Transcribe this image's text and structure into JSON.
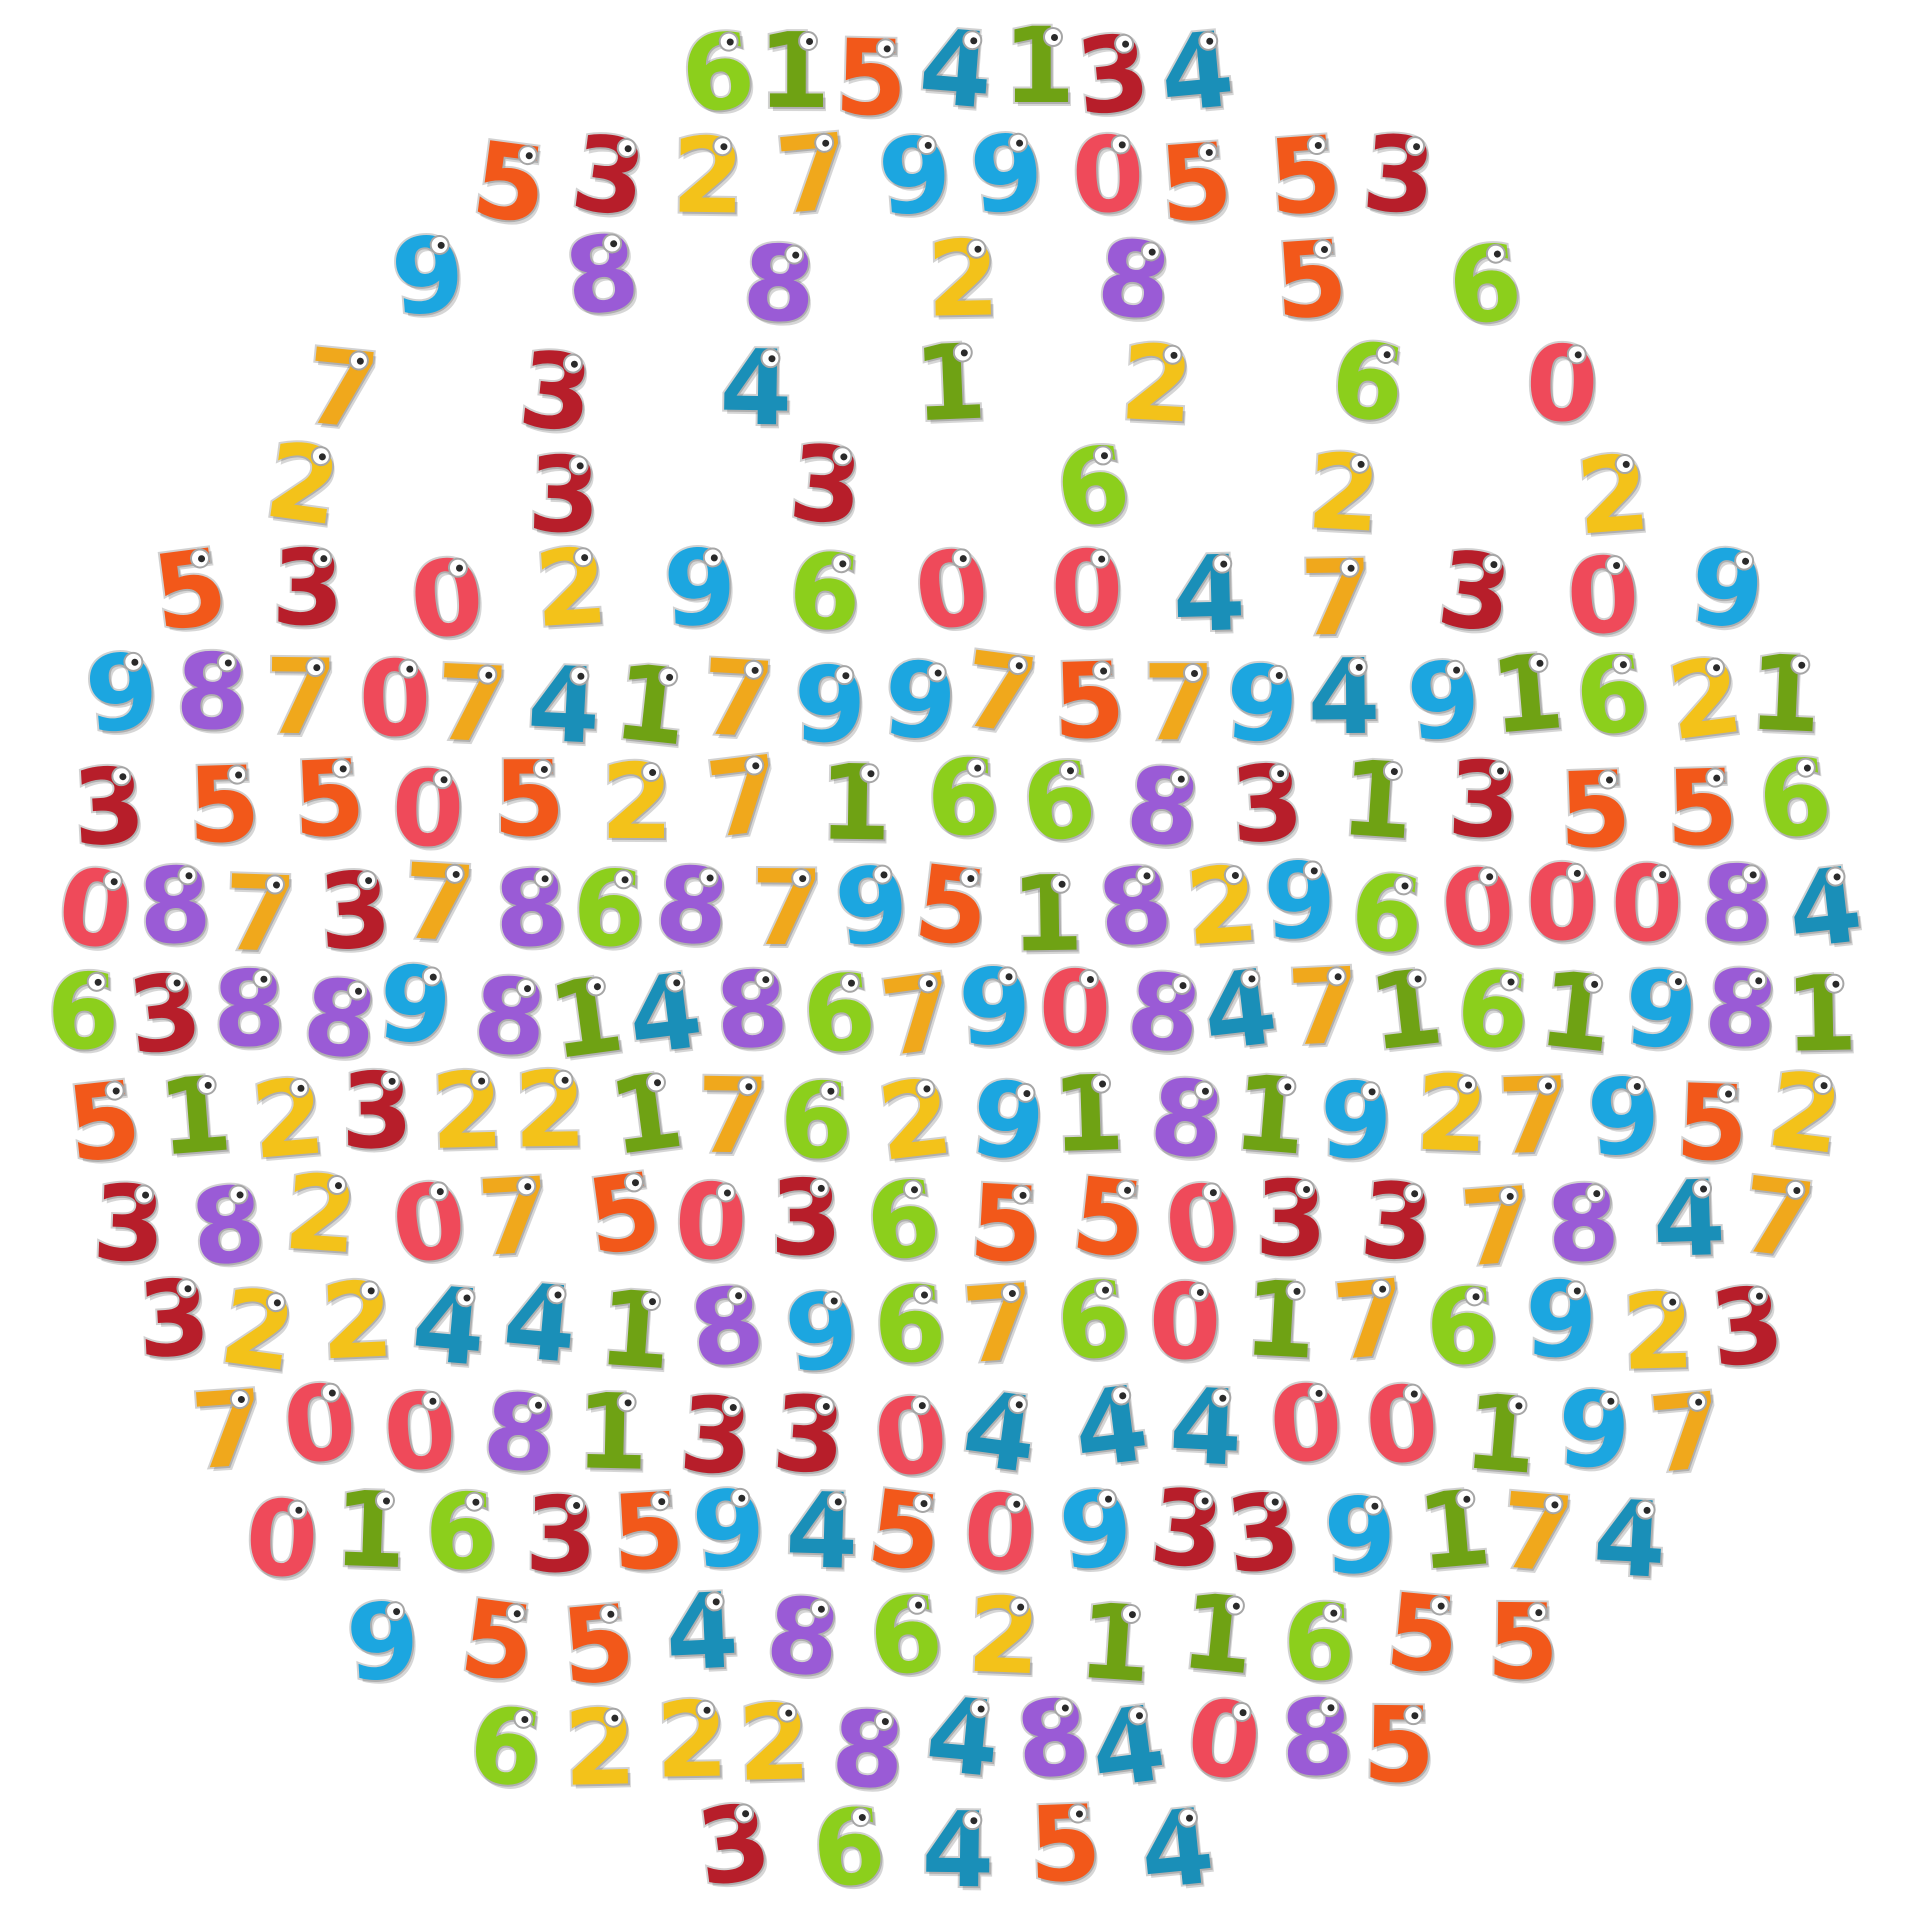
{
  "digit_colors": {
    "0": "#ef4a5a",
    "1": "#6fa214",
    "2": "#f3c21a",
    "3": "#b71e2a",
    "4": "#1a8fb8",
    "5": "#f2581a",
    "6": "#8ccf1c",
    "7": "#f0a81c",
    "8": "#9a5bd6",
    "9": "#1ca6e0"
  },
  "rows": [
    [
      "6",
      "1",
      "5",
      "4",
      "1",
      "3",
      "4"
    ],
    [
      "5",
      "3",
      "2",
      "7",
      "9",
      "9",
      "0",
      "5",
      "5",
      "3"
    ],
    [
      "9",
      "8",
      "8",
      "2",
      "8",
      "5",
      "6"
    ],
    [
      "7",
      "3",
      "4",
      "1",
      "2",
      "6",
      "0"
    ],
    [
      "2",
      "3",
      "3",
      "6",
      "2",
      "2"
    ],
    [
      "5",
      "3",
      "0",
      "2",
      "9",
      "6",
      "0",
      "0",
      "4",
      "7",
      "3",
      "0",
      "9"
    ],
    [
      "9",
      "8",
      "7",
      "0",
      "7",
      "4",
      "1",
      "7",
      "9",
      "9",
      "7",
      "5",
      "7",
      "9",
      "4",
      "9",
      "1",
      "6",
      "2",
      "1"
    ],
    [
      "3",
      "5",
      "5",
      "0",
      "5",
      "2",
      "7",
      "1",
      "6",
      "6",
      "8",
      "3",
      "1",
      "3",
      "5",
      "5",
      "6"
    ],
    [
      "0",
      "8",
      "7",
      "3",
      "7",
      "8",
      "6",
      "8",
      "7",
      "9",
      "5",
      "1",
      "8",
      "2",
      "9",
      "6",
      "0",
      "0",
      "0",
      "8",
      "4"
    ],
    [
      "6",
      "3",
      "8",
      "8",
      "9",
      "8",
      "1",
      "4",
      "8",
      "6",
      "7",
      "9",
      "0",
      "8",
      "4",
      "7",
      "1",
      "6",
      "1",
      "9",
      "8",
      "1"
    ],
    [
      "5",
      "1",
      "2",
      "3",
      "2",
      "2",
      "1",
      "7",
      "6",
      "2",
      "9",
      "1",
      "8",
      "1",
      "9",
      "2",
      "7",
      "9",
      "5",
      "2"
    ],
    [
      "3",
      "8",
      "2",
      "0",
      "7",
      "5",
      "0",
      "3",
      "6",
      "5",
      "5",
      "0",
      "3",
      "3",
      "7",
      "8",
      "4",
      "7"
    ],
    [
      "3",
      "2",
      "2",
      "4",
      "4",
      "1",
      "8",
      "9",
      "6",
      "7",
      "6",
      "0",
      "1",
      "7",
      "6",
      "9",
      "2",
      "3"
    ],
    [
      "7",
      "0",
      "0",
      "8",
      "1",
      "3",
      "3",
      "0",
      "4",
      "4",
      "4",
      "0",
      "0",
      "1",
      "9",
      "7"
    ],
    [
      "0",
      "1",
      "6",
      "3",
      "5",
      "9",
      "4",
      "5",
      "0",
      "9",
      "3",
      "3",
      "9",
      "1",
      "7",
      "4"
    ],
    [
      "9",
      "5",
      "5",
      "4",
      "8",
      "6",
      "2",
      "1",
      "1",
      "6",
      "5",
      "5"
    ],
    [
      "6",
      "2",
      "2",
      "2",
      "8",
      "4",
      "8",
      "4",
      "0",
      "8",
      "5"
    ],
    [
      "3",
      "6",
      "4",
      "5",
      "4"
    ]
  ]
}
